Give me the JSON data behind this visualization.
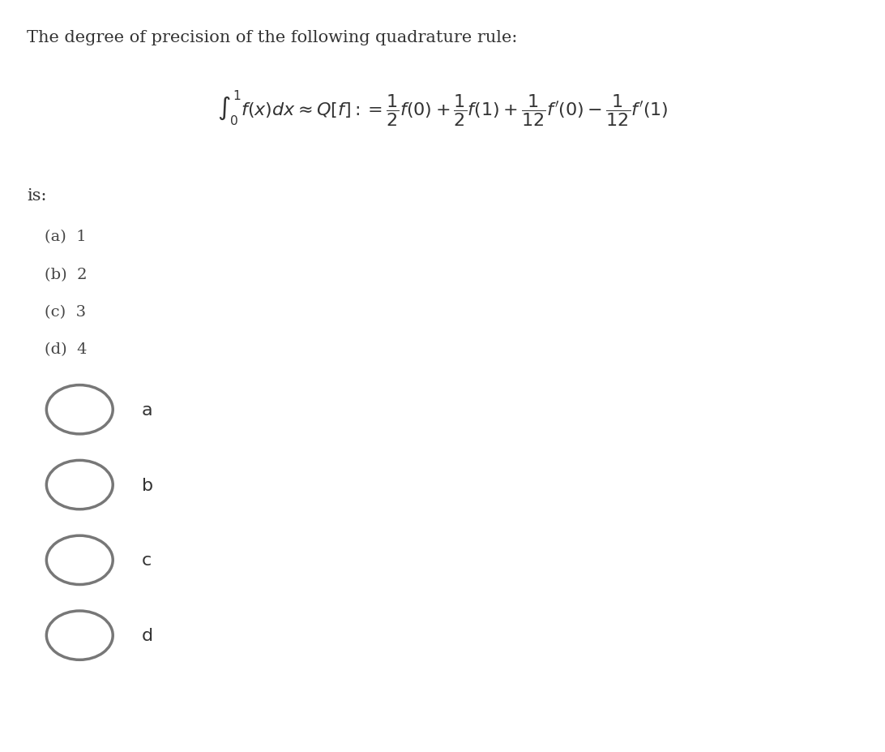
{
  "title_text": "The degree of precision of the following quadrature rule:",
  "formula": "$\\int_0^1 f(x)dx \\approx Q[f] := \\dfrac{1}{2}f(0) + \\dfrac{1}{2}f(1) + \\dfrac{1}{12}f'(0) - \\dfrac{1}{12}f'(1)$",
  "is_text": "is:",
  "options": [
    "(a)  1",
    "(b)  2",
    "(c)  3",
    "(d)  4"
  ],
  "radio_labels": [
    "a",
    "b",
    "c",
    "d"
  ],
  "background_color": "#ffffff",
  "text_color": "#333333",
  "option_color": "#444444",
  "radio_color": "#777777",
  "title_fontsize": 15,
  "formula_fontsize": 16,
  "option_fontsize": 14,
  "radio_fontsize": 16
}
